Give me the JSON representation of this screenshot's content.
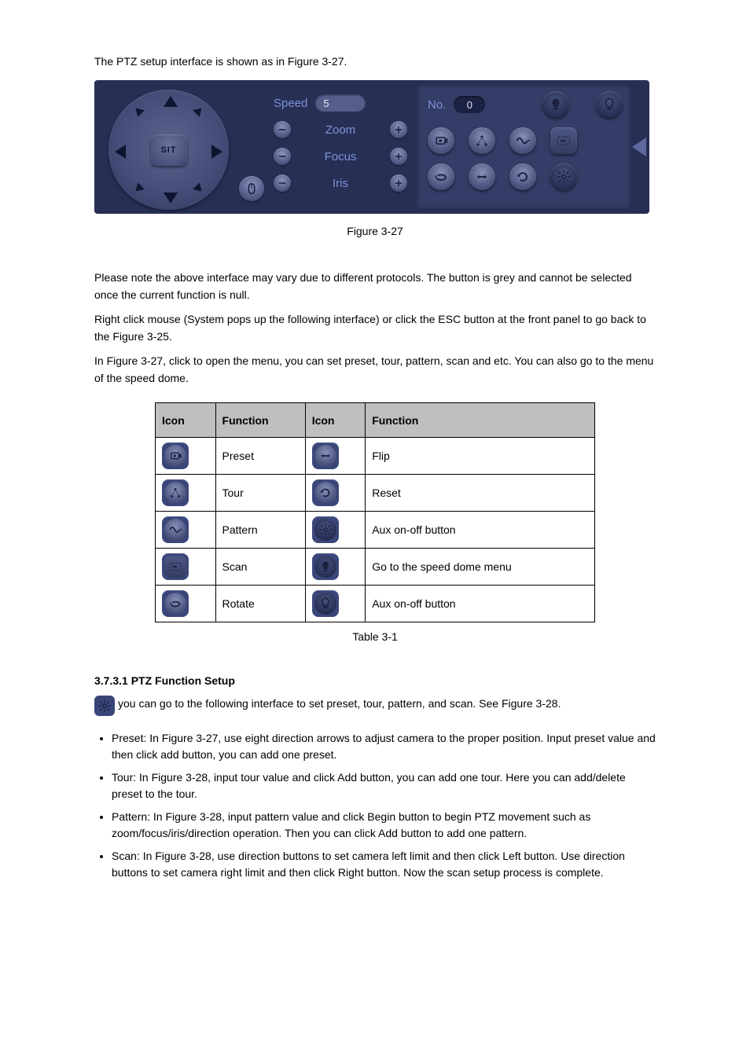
{
  "intro_text": "The PTZ setup interface is shown as in Figure 3-27.",
  "ptz": {
    "sit_label": "SIT",
    "speed_label": "Speed",
    "speed_value": "5",
    "zoom_label": "Zoom",
    "focus_label": "Focus",
    "iris_label": "Iris",
    "no_label": "No.",
    "no_value": "0"
  },
  "figure_caption": "Figure 3-27",
  "zoom_text": "Please note the above interface may vary due to different protocols. The button is grey and cannot be selected once the current function is null.",
  "zoom_text2": "Right click mouse (System pops up the following interface) or click the ESC button at the front panel to go back to the Figure 3-25.",
  "zoom_text3": "In Figure 3-27, click to open the menu, you can set preset, tour, pattern, scan and etc. You can also go to the menu of the speed dome.",
  "table_caption": "Table 3-1",
  "table": {
    "headers": [
      "Icon",
      "Function",
      "Icon",
      "Function"
    ],
    "rows": [
      [
        "preset",
        "Preset",
        "flip",
        "Flip"
      ],
      [
        "tour",
        "Tour",
        "reset",
        "Reset"
      ],
      [
        "pattern",
        "Pattern",
        "aux-config",
        "Aux on-off button"
      ],
      [
        "scan",
        "Scan",
        "light-on",
        "Go to the speed dome menu"
      ],
      [
        "rotate",
        "Rotate",
        "light-off",
        "Aux on-off button"
      ]
    ]
  },
  "setup_heading": "3.7.3.1 PTZ Function Setup",
  "setup_line": "you can go to the following interface to set preset, tour, pattern, and scan. See Figure 3-28.",
  "bullets": [
    "Preset: In Figure 3-27, use eight direction arrows to adjust camera to the proper position. Input preset value and then click add button, you can add one preset.",
    "Tour: In Figure 3-28, input tour value and click Add button, you can add one tour. Here you can add/delete preset to the tour.",
    "Pattern: In Figure 3-28, input pattern value and click Begin button to begin PTZ movement such as zoom/focus/iris/direction operation. Then you can click Add button to add one pattern.",
    "Scan: In Figure 3-28, use direction buttons to set camera left limit and then click Left button. Use direction buttons to set camera right limit and then click Right button. Now the scan setup process is complete."
  ],
  "colors": {
    "panel_bg": "#272f55",
    "panel_bg_inner": "#343d67",
    "accent": "#7e92d8",
    "icon_dark": "#1e2140",
    "table_header": "#bfbfbf"
  }
}
